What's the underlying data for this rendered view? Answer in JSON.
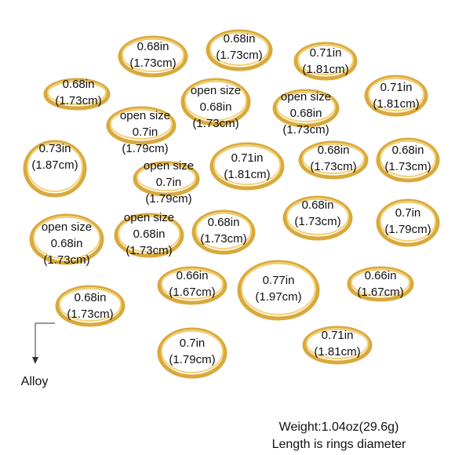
{
  "labels": [
    {
      "lines": [
        "0.68in",
        "(1.73cm)"
      ]
    },
    {
      "lines": [
        "0.68in",
        "(1.73cm)"
      ]
    },
    {
      "lines": [
        "0.71in",
        "(1.81cm)"
      ]
    },
    {
      "lines": [
        "0.68in",
        "(1.73cm)"
      ]
    },
    {
      "lines": [
        "open size",
        "0.68in",
        "(1.73cm)"
      ]
    },
    {
      "lines": [
        "open size",
        "0.68in",
        "(1.73cm)"
      ]
    },
    {
      "lines": [
        "0.71in",
        "(1.81cm)"
      ]
    },
    {
      "lines": [
        "open size",
        "0.7in",
        "(1.79cm)"
      ]
    },
    {
      "lines": [
        "0.73in",
        "(1.87cm)"
      ]
    },
    {
      "lines": [
        "0.71in",
        "(1.81cm)"
      ]
    },
    {
      "lines": [
        "0.68in",
        "(1.73cm)"
      ]
    },
    {
      "lines": [
        "0.68in",
        "(1.73cm)"
      ]
    },
    {
      "lines": [
        "open size",
        "0.7in",
        "(1.79cm)"
      ]
    },
    {
      "lines": [
        "0.68in",
        "(1.73cm)"
      ]
    },
    {
      "lines": [
        "0.7in",
        "(1.79cm)"
      ]
    },
    {
      "lines": [
        "open size",
        "0.68in",
        "(1.73cm)"
      ]
    },
    {
      "lines": [
        "open size",
        "0.68in",
        "(1.73cm)"
      ]
    },
    {
      "lines": [
        "0.68in",
        "(1.73cm)"
      ]
    },
    {
      "lines": [
        "0.66in",
        "(1.67cm)"
      ]
    },
    {
      "lines": [
        "0.77in",
        "(1.97cm)"
      ]
    },
    {
      "lines": [
        "0.66in",
        "(1.67cm)"
      ]
    },
    {
      "lines": [
        "0.68in",
        "(1.73cm)"
      ]
    },
    {
      "lines": [
        "0.7in",
        "(1.79cm)"
      ]
    },
    {
      "lines": [
        "0.71in",
        "(1.81cm)"
      ]
    }
  ],
  "material": "Alloy",
  "weight": "Weight:1.04oz(29.6g)",
  "note": "Length is rings diameter"
}
